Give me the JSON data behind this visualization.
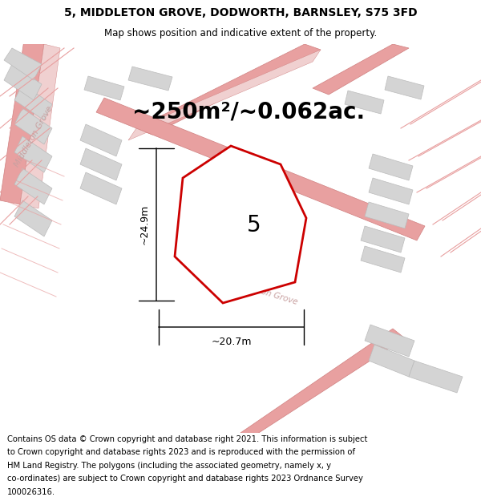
{
  "title_line1": "5, MIDDLETON GROVE, DODWORTH, BARNSLEY, S75 3FD",
  "title_line2": "Map shows position and indicative extent of the property.",
  "area_text": "~250m²/~0.062ac.",
  "label_number": "5",
  "dim_height": "~24.9m",
  "dim_width": "~20.7m",
  "footer_text": "Contains OS data © Crown copyright and database right 2021. This information is subject to Crown copyright and database rights 2023 and is reproduced with the permission of HM Land Registry. The polygons (including the associated geometry, namely x, y co-ordinates) are subject to Crown copyright and database rights 2023 Ordnance Survey 100026316.",
  "bg_color": "#f7f2f2",
  "road_line_color": "#e8a0a0",
  "road_line_color2": "#d08080",
  "building_fill": "#d4d4d4",
  "building_edge": "#bbbbbb",
  "plot_outline_color": "#cc0000",
  "plot_fill": "#ffffff",
  "road_label_color": "#c8a0a0",
  "title_fontsize": 10,
  "subtitle_fontsize": 8.5,
  "area_fontsize": 20,
  "number_fontsize": 20,
  "dim_fontsize": 9,
  "footer_fontsize": 7.2,
  "road_lw": 1.0,
  "prop_lw": 2.0
}
